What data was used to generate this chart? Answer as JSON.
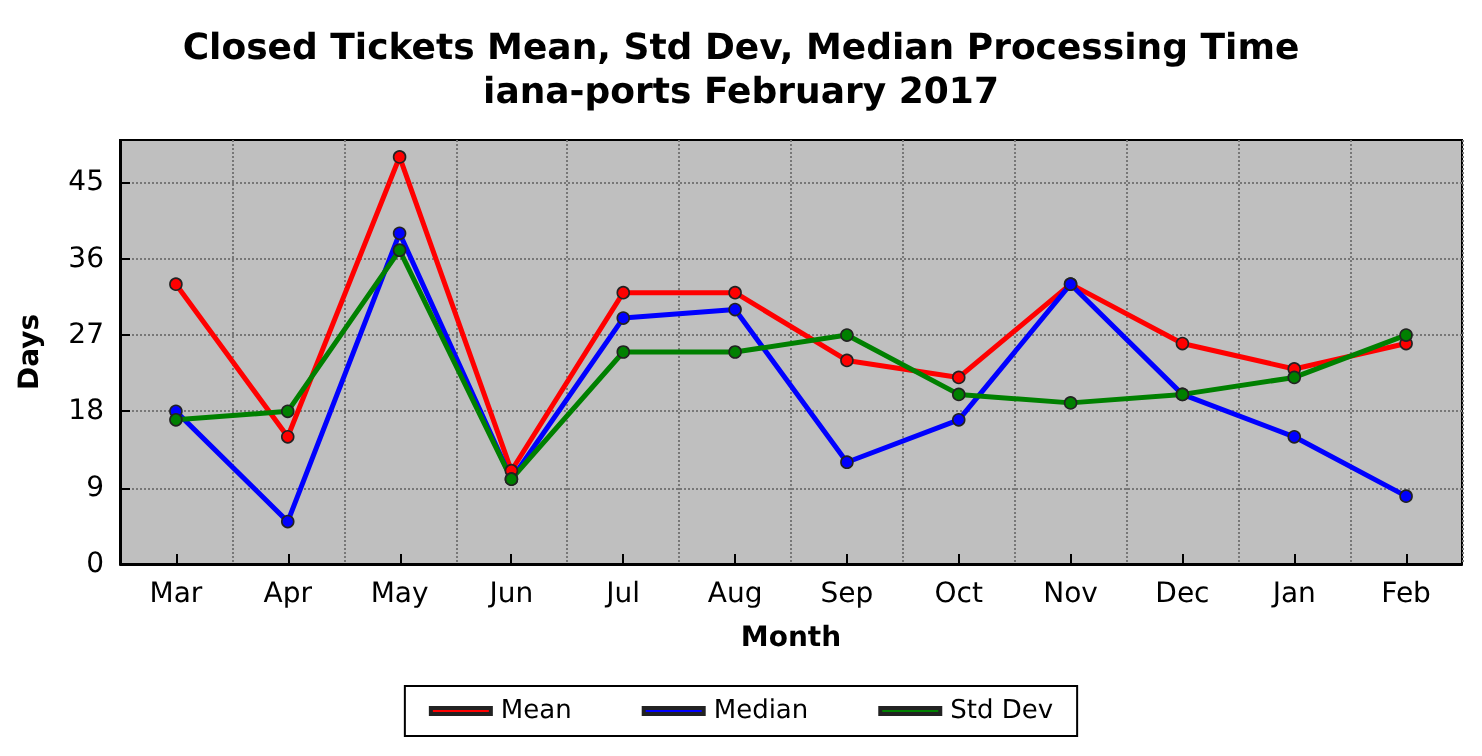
{
  "chart_data": {
    "type": "line",
    "title": "Closed Tickets Mean, Std Dev, Median Processing Time\niana-ports February 2017",
    "xlabel": "Month",
    "ylabel": "Days",
    "categories": [
      "Mar",
      "Apr",
      "May",
      "Jun",
      "Jul",
      "Aug",
      "Sep",
      "Oct",
      "Nov",
      "Dec",
      "Jan",
      "Feb"
    ],
    "series": [
      {
        "name": "Mean",
        "color": "#ff0000",
        "values": [
          33,
          15,
          48,
          11,
          32,
          32,
          24,
          22,
          33,
          26,
          23,
          26
        ]
      },
      {
        "name": "Median",
        "color": "#0000ff",
        "values": [
          18,
          5,
          39,
          10,
          29,
          30,
          12,
          17,
          33,
          20,
          15,
          8
        ]
      },
      {
        "name": "Std Dev",
        "color": "#008000",
        "values": [
          17,
          18,
          37,
          10,
          25,
          25,
          27,
          20,
          19,
          20,
          22,
          27
        ]
      }
    ],
    "ylim": [
      0,
      50
    ],
    "yticks": [
      0,
      9,
      18,
      27,
      36,
      45
    ],
    "grid": true,
    "legend": "bottom",
    "marker": "circle",
    "line_style": "solid"
  }
}
